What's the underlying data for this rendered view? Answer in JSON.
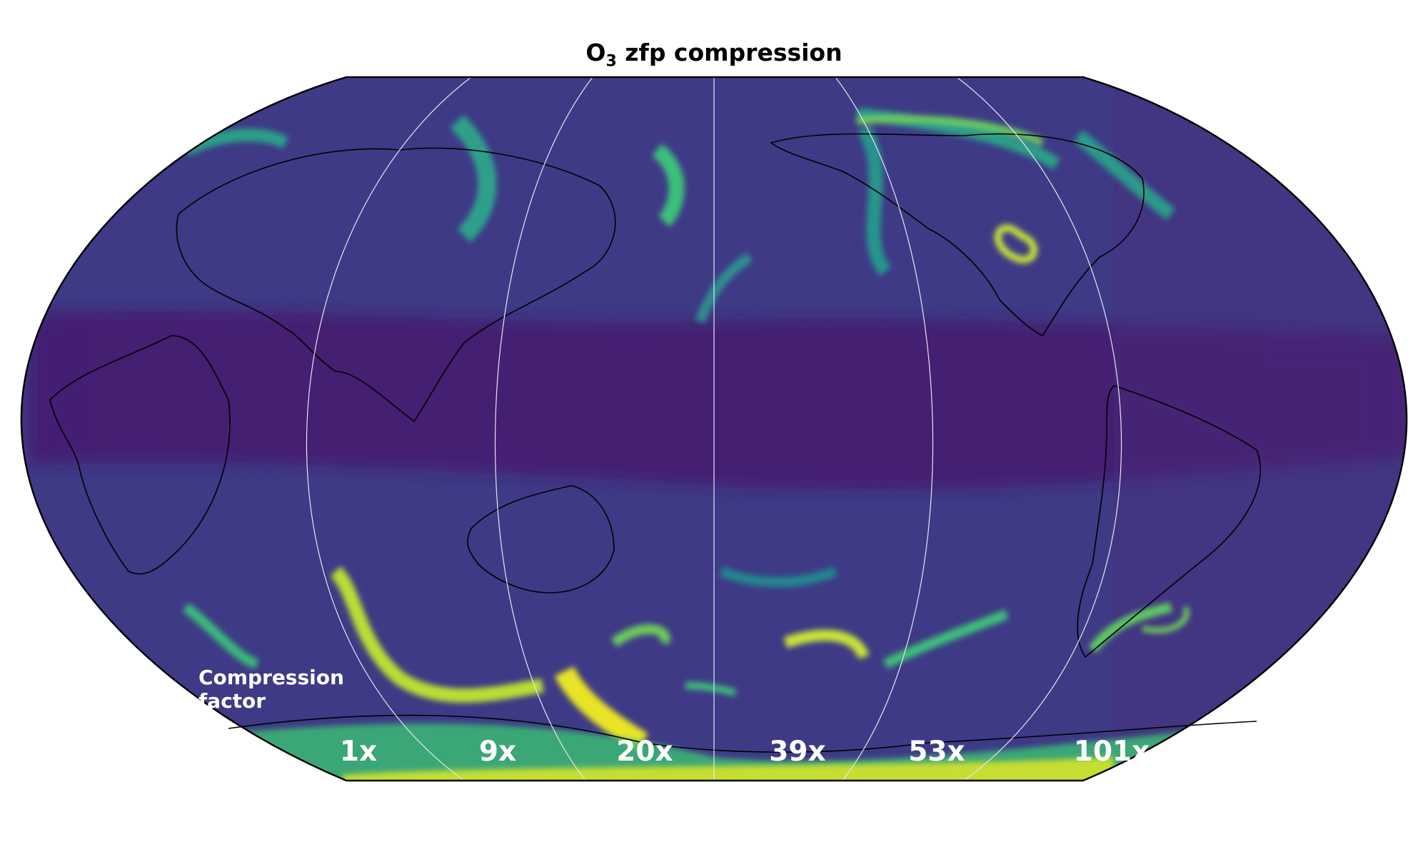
{
  "title": {
    "main": "O",
    "sub": "3",
    "rest": " zfp compression"
  },
  "map": {
    "projection": "robinson",
    "central_longitude": 180,
    "colormap": "viridis",
    "colormap_stops": [
      "#440154",
      "#3b528b",
      "#21918c",
      "#5ec962",
      "#fde725"
    ],
    "background": "#3f3d8a",
    "outline_color": "#000000",
    "meridian_color": "#e6e6f0"
  },
  "compression": {
    "label_line1": "Compression",
    "label_line2": "factor",
    "factors": [
      "1x",
      "9x",
      "20x",
      "39x",
      "53x",
      "101x"
    ]
  }
}
